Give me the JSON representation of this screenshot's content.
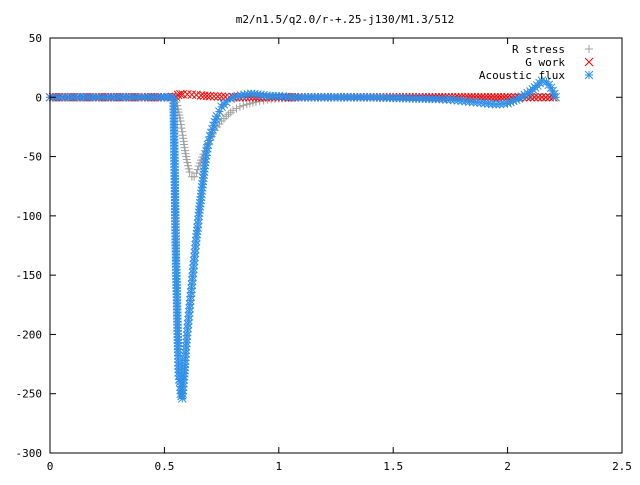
{
  "chart_data": {
    "type": "scatter",
    "title": "m2/n1.5/q2.0/r-+.25-j130/M1.3/512",
    "xlabel": "",
    "ylabel": "",
    "xlim": [
      0,
      2.5
    ],
    "ylim": [
      -300,
      50
    ],
    "x_ticks": [
      0,
      0.5,
      1,
      1.5,
      2,
      2.5
    ],
    "x_tick_labels": [
      "0",
      "0.5",
      "1",
      "1.5",
      "2",
      "2.5"
    ],
    "y_ticks": [
      50,
      0,
      -50,
      -100,
      -150,
      -200,
      -250,
      -300
    ],
    "y_tick_labels": [
      "50",
      "0",
      "-50",
      "-100",
      "-150",
      "-200",
      "-250",
      "-300"
    ],
    "grid": false,
    "legend_position": "top-right",
    "series": [
      {
        "name": "R stress",
        "marker": "plus",
        "color": "#a0a0a0",
        "x": [
          0.0,
          0.1,
          0.2,
          0.3,
          0.4,
          0.5,
          0.55,
          0.56,
          0.57,
          0.58,
          0.59,
          0.6,
          0.61,
          0.62,
          0.63,
          0.64,
          0.65,
          0.67,
          0.69,
          0.71,
          0.73,
          0.75,
          0.77,
          0.8,
          0.83,
          0.86,
          0.9,
          0.95,
          1.0,
          1.1,
          1.2,
          1.3,
          1.4,
          1.5,
          1.6,
          1.7,
          1.8,
          1.9,
          2.0,
          2.1,
          2.2
        ],
        "y": [
          0,
          0,
          0,
          0,
          0,
          0,
          -1,
          -10,
          -20,
          -32,
          -45,
          -55,
          -63,
          -67,
          -67,
          -64,
          -58,
          -48,
          -39,
          -31,
          -25,
          -20,
          -16,
          -11,
          -8,
          -6,
          -4,
          -2,
          -1,
          0,
          0,
          0,
          0,
          0,
          0,
          0,
          0,
          0,
          0,
          0,
          0
        ]
      },
      {
        "name": "G work",
        "marker": "cross",
        "color": "#ff0000",
        "x": [
          0.0,
          0.2,
          0.4,
          0.5,
          0.55,
          0.56,
          0.57,
          0.58,
          0.6,
          0.62,
          0.64,
          0.66,
          0.7,
          0.75,
          0.8,
          0.9,
          1.0,
          1.1,
          1.2,
          1.3,
          1.4,
          1.5,
          1.6,
          1.7,
          1.8,
          1.9,
          2.0,
          2.05,
          2.1,
          2.15,
          2.2
        ],
        "y": [
          0,
          0,
          0,
          0,
          0.5,
          2,
          2.5,
          2.5,
          2.5,
          2.3,
          2,
          1.5,
          1,
          0.5,
          0,
          0,
          0,
          0,
          0,
          0,
          0,
          0,
          0,
          0,
          0,
          0,
          0,
          0,
          0,
          0,
          0
        ]
      },
      {
        "name": "Acoustic flux",
        "marker": "star",
        "color": "#2f8fe8",
        "x": [
          0.0,
          0.05,
          0.1,
          0.15,
          0.2,
          0.25,
          0.3,
          0.35,
          0.4,
          0.45,
          0.5,
          0.54,
          0.55,
          0.56,
          0.562,
          0.565,
          0.568,
          0.57,
          0.572,
          0.575,
          0.578,
          0.58,
          0.585,
          0.59,
          0.595,
          0.6,
          0.605,
          0.61,
          0.615,
          0.62,
          0.625,
          0.63,
          0.635,
          0.64,
          0.645,
          0.65,
          0.655,
          0.66,
          0.665,
          0.67,
          0.675,
          0.68,
          0.685,
          0.69,
          0.7,
          0.71,
          0.72,
          0.73,
          0.74,
          0.75,
          0.77,
          0.79,
          0.82,
          0.85,
          0.88,
          0.92,
          0.96,
          1.0,
          1.05,
          1.1,
          1.2,
          1.3,
          1.4,
          1.5,
          1.6,
          1.7,
          1.75,
          1.8,
          1.85,
          1.9,
          1.95,
          2.0,
          2.05,
          2.1,
          2.13,
          2.15,
          2.17,
          2.19,
          2.21
        ],
        "y": [
          0,
          0,
          0,
          0,
          0,
          0,
          0,
          0,
          0,
          0,
          0,
          0,
          -130,
          -215,
          -232,
          -238,
          -240,
          -244,
          -250,
          -252,
          -254,
          -250,
          -238,
          -225,
          -210,
          -198,
          -188,
          -178,
          -168,
          -158,
          -148,
          -138,
          -128,
          -118,
          -110,
          -100,
          -92,
          -84,
          -76,
          -68,
          -60,
          -52,
          -46,
          -40,
          -33,
          -27,
          -21,
          -16,
          -12,
          -8,
          -4,
          -1,
          1,
          2,
          3,
          2,
          1,
          1,
          0,
          0,
          0,
          0,
          0,
          -0.5,
          -1,
          -1.5,
          -2,
          -3,
          -4,
          -5,
          -6,
          -5,
          -1,
          5,
          10,
          14,
          13,
          8,
          0
        ]
      }
    ]
  }
}
